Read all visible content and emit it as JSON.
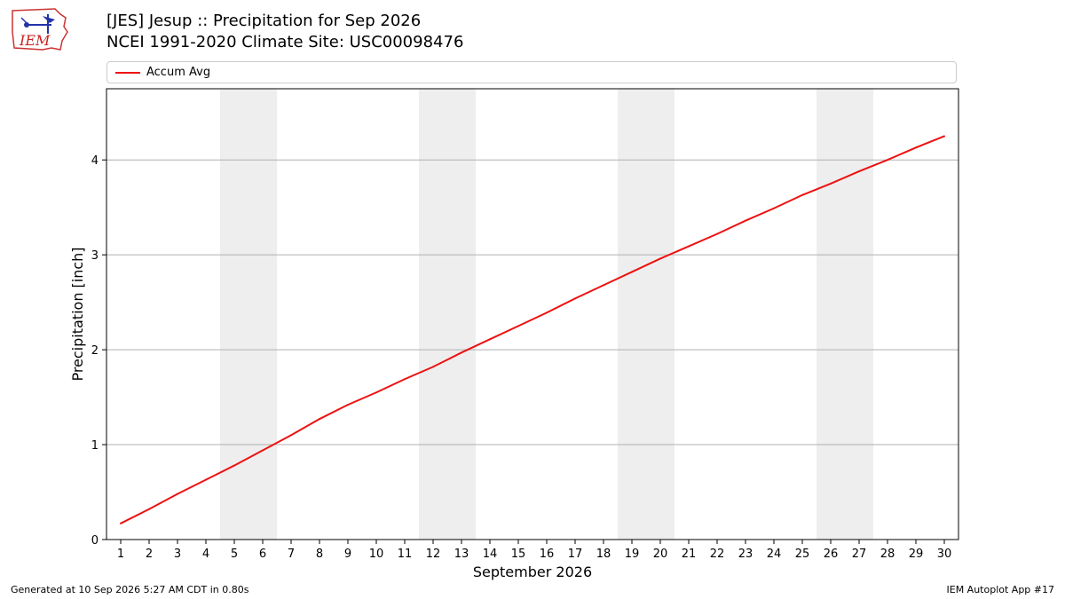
{
  "header": {
    "title": "[JES] Jesup :: Precipitation for Sep 2026",
    "subtitle": "NCEI 1991-2020 Climate Site: USC00098476"
  },
  "logo": {
    "text": "IEM"
  },
  "legend": {
    "label": "Accum Avg"
  },
  "colors": {
    "line": "#ee1111",
    "weekend": "#eeeeee",
    "grid": "#b0b0b0"
  },
  "footer": {
    "left": "Generated at 10 Sep 2026 5:27 AM CDT in 0.80s",
    "right": "IEM Autoplot App #17"
  },
  "chart_data": {
    "type": "line",
    "xlabel": "September 2026",
    "ylabel": "Precipitation [inch]",
    "x": [
      1,
      2,
      3,
      4,
      5,
      6,
      7,
      8,
      9,
      10,
      11,
      12,
      13,
      14,
      15,
      16,
      17,
      18,
      19,
      20,
      21,
      22,
      23,
      24,
      25,
      26,
      27,
      28,
      29,
      30
    ],
    "xlim": [
      0.5,
      30.5
    ],
    "ylim": [
      0,
      4.75
    ],
    "yticks": [
      0,
      1,
      2,
      3,
      4
    ],
    "grid": "horizontal",
    "weekend_bands": [
      [
        5,
        6
      ],
      [
        12,
        13
      ],
      [
        19,
        20
      ],
      [
        26,
        27
      ]
    ],
    "series": [
      {
        "name": "Accum Avg",
        "values": [
          0.17,
          0.32,
          0.48,
          0.63,
          0.78,
          0.94,
          1.1,
          1.27,
          1.42,
          1.55,
          1.69,
          1.82,
          1.97,
          2.11,
          2.25,
          2.39,
          2.54,
          2.68,
          2.82,
          2.96,
          3.09,
          3.22,
          3.36,
          3.49,
          3.63,
          3.75,
          3.88,
          4.0,
          4.13,
          4.25
        ]
      }
    ],
    "legend": "top"
  }
}
